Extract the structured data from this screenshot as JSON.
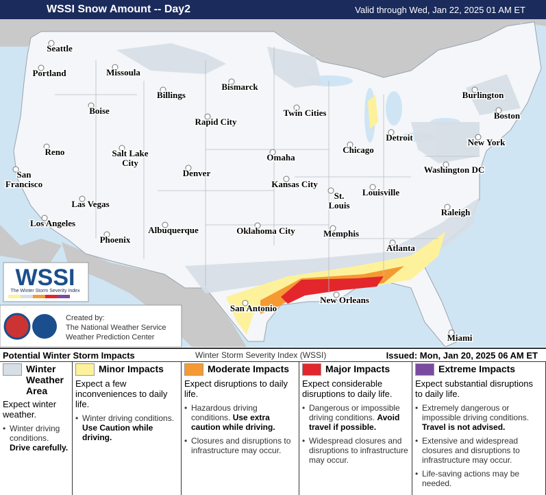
{
  "header": {
    "title": "WSSI Snow Amount -- Day2",
    "valid": "Valid through Wed, Jan 22, 2025 01 AM ET"
  },
  "cities": [
    "Seattle",
    "Portland",
    "Missoula",
    "Billings",
    "Bismarck",
    "Boise",
    "Rapid City",
    "Twin Cities",
    "Burlington",
    "Boston",
    "Detroit",
    "Chicago",
    "New York",
    "Reno",
    "Salt Lake City",
    "Omaha",
    "Washington DC",
    "San Francisco",
    "Denver",
    "Kansas City",
    "St. Louis",
    "Louisville",
    "Las Vegas",
    "Los Angeles",
    "Raleigh",
    "Albuquerque",
    "Oklahoma City",
    "Memphis",
    "Phoenix",
    "Atlanta",
    "New Orleans",
    "San Antonio",
    "Miami"
  ],
  "logo": {
    "text": "WSSI",
    "subtitle": "The Winter Storm Severity Index"
  },
  "credits": [
    "Created by:",
    "The National Weather Service",
    "Weather Prediction Center"
  ],
  "legend": {
    "title": "Potential Winter Storm Impacts",
    "index": "Winter Storm Severity Index (WSSI)",
    "issued": "Issued: Mon, Jan 20, 2025 06 AM ET",
    "columns": [
      {
        "name": "Winter Weather Area",
        "color": "#d6dee6",
        "summary": "Expect winter weather.",
        "bullets": [
          {
            "text": "Winter driving conditions.",
            "bold": "Drive carefully."
          }
        ]
      },
      {
        "name": "Minor Impacts",
        "color": "#fdf29b",
        "summary": "Expect a few inconveniences to daily life.",
        "bullets": [
          {
            "text": "Winter driving conditions.",
            "bold": "Use Caution while driving."
          }
        ]
      },
      {
        "name": "Moderate Impacts",
        "color": "#f59a32",
        "summary": "Expect disruptions to daily life.",
        "bullets": [
          {
            "text": "Hazardous driving conditions.",
            "bold": "Use extra caution while driving."
          },
          {
            "text": "Closures and disruptions to infrastructure may occur."
          }
        ]
      },
      {
        "name": "Major Impacts",
        "color": "#e3262b",
        "summary": "Expect considerable disruptions to daily life.",
        "bullets": [
          {
            "text": "Dangerous or impossible driving conditions.",
            "bold": "Avoid travel if possible."
          },
          {
            "text": "Widespread closures and disruptions to infrastructure may occur."
          }
        ]
      },
      {
        "name": "Extreme Impacts",
        "color": "#7a4aa0",
        "summary": "Expect substantial disruptions to daily life.",
        "bullets": [
          {
            "text": "Extremely dangerous or impossible driving conditions.",
            "bold": "Travel is not advised."
          },
          {
            "text": "Extensive and widespread closures and disruptions to infrastructure may occur."
          },
          {
            "text": "Life-saving actions may be needed."
          }
        ]
      }
    ]
  }
}
